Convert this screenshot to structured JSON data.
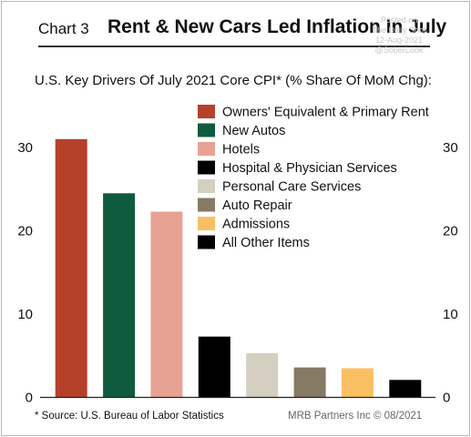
{
  "header": {
    "chart_number": "Chart 3",
    "title": "Rent & New Cars Led Inflation In July",
    "subtitle": "U.S. Key Drivers Of July 2021 Core CPI* (% Share Of MoM Chg):"
  },
  "watermark": {
    "line1": "Posted on",
    "line2": "The Daily Shot",
    "line3": "12-Aug-2021",
    "line4": "@SoberLook"
  },
  "footer": {
    "source": "* Source: U.S. Bureau of Labor Statistics",
    "credit": "MRB Partners Inc © 08/2021"
  },
  "chart_data": {
    "type": "bar",
    "categories": [
      "Owners' Equivalent & Primary Rent",
      "New Autos",
      "Hotels",
      "Hospital & Physician Services",
      "Personal Care Services",
      "Auto Repair",
      "Admissions",
      "All Other Items"
    ],
    "values": [
      31.0,
      24.5,
      22.3,
      7.3,
      5.3,
      3.6,
      3.5,
      2.1
    ],
    "colors": [
      "#b5412a",
      "#0f5b3e",
      "#e8a293",
      "#000000",
      "#d4cfc1",
      "#857a63",
      "#fbbf63",
      "#000000"
    ],
    "ylim": [
      0,
      35
    ],
    "yticks": [
      "0",
      "10",
      "20",
      "30"
    ],
    "ytick_values": [
      0,
      10,
      20,
      30
    ],
    "legend_position": "top-right",
    "grid": false
  }
}
